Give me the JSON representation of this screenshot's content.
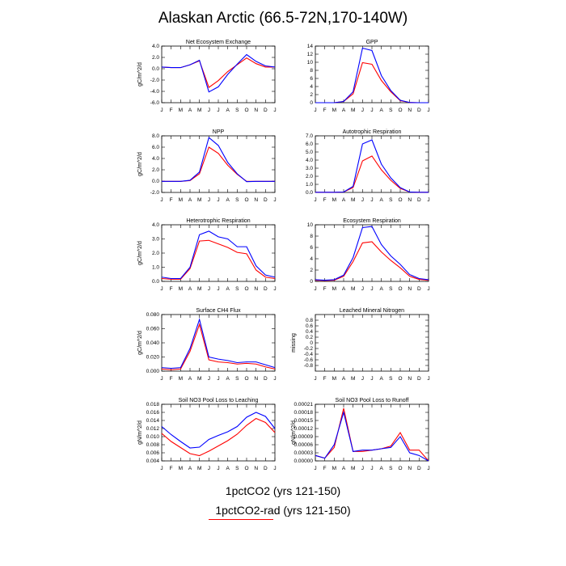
{
  "title": "Alaskan Arctic (66.5-72N,170-140W)",
  "colors": {
    "series1": "#0000ff",
    "series2": "#ff0000"
  },
  "legend": {
    "series1_label": "1pctCO2 (yrs 121-150)",
    "series2_label": "1pctCO2-rad (yrs 121-150)"
  },
  "chart_data": [
    {
      "type": "line",
      "title": "Net Ecosystem Exchange",
      "ylabel": "gC/m^2/d",
      "x": [
        "J",
        "F",
        "M",
        "A",
        "M",
        "J",
        "J",
        "A",
        "S",
        "O",
        "N",
        "D",
        "J"
      ],
      "ylim": [
        -6.0,
        4.0
      ],
      "yticks": [
        -6.0,
        -4.0,
        -2.0,
        0.0,
        2.0,
        4.0
      ],
      "ytick_labels": [
        "-6.0",
        "-4.0",
        "-2.0",
        "0.0",
        "2.0",
        "4.0"
      ],
      "series": [
        {
          "values": [
            0.3,
            0.2,
            0.2,
            0.7,
            1.5,
            -4.1,
            -3.2,
            -1.0,
            0.8,
            2.5,
            1.3,
            0.5,
            0.3
          ]
        },
        {
          "values": [
            0.3,
            0.2,
            0.2,
            0.7,
            1.4,
            -3.3,
            -2.1,
            -0.5,
            0.7,
            1.9,
            0.9,
            0.3,
            0.3
          ]
        }
      ]
    },
    {
      "type": "line",
      "title": "GPP",
      "ylabel": "",
      "x": [
        "J",
        "F",
        "M",
        "A",
        "M",
        "J",
        "J",
        "A",
        "S",
        "O",
        "N",
        "D",
        "J"
      ],
      "ylim": [
        0,
        14
      ],
      "yticks": [
        0,
        2,
        4,
        6,
        8,
        10,
        12,
        14
      ],
      "ytick_labels": [
        "0",
        "2",
        "4",
        "6",
        "8",
        "10",
        "12",
        "14"
      ],
      "series": [
        {
          "values": [
            0.0,
            0.0,
            0.0,
            0.3,
            2.7,
            13.5,
            12.9,
            6.7,
            3.0,
            0.6,
            0.05,
            0.0,
            0.0
          ]
        },
        {
          "values": [
            0.0,
            0.0,
            0.0,
            0.3,
            2.2,
            9.9,
            9.5,
            5.5,
            2.7,
            0.5,
            0.05,
            0.0,
            0.0
          ]
        }
      ]
    },
    {
      "type": "line",
      "title": "NPP",
      "ylabel": "gC/m^2/d",
      "x": [
        "J",
        "F",
        "M",
        "A",
        "M",
        "J",
        "J",
        "A",
        "S",
        "O",
        "N",
        "D",
        "J"
      ],
      "ylim": [
        -2.0,
        8.0
      ],
      "yticks": [
        -2.0,
        0.0,
        2.0,
        4.0,
        6.0,
        8.0
      ],
      "ytick_labels": [
        "-2.0",
        "0.0",
        "2.0",
        "4.0",
        "6.0",
        "8.0"
      ],
      "series": [
        {
          "values": [
            -0.05,
            -0.05,
            -0.05,
            0.15,
            1.6,
            7.7,
            6.3,
            3.3,
            1.3,
            -0.1,
            -0.05,
            -0.05,
            -0.05
          ]
        },
        {
          "values": [
            -0.05,
            -0.05,
            -0.05,
            0.1,
            1.3,
            6.0,
            4.9,
            2.8,
            1.2,
            -0.05,
            -0.05,
            -0.05,
            -0.05
          ]
        }
      ]
    },
    {
      "type": "line",
      "title": "Autotrophic Respiration",
      "ylabel": "",
      "x": [
        "J",
        "F",
        "M",
        "A",
        "M",
        "J",
        "J",
        "A",
        "S",
        "O",
        "N",
        "D",
        "J"
      ],
      "ylim": [
        0.0,
        7.0
      ],
      "yticks": [
        0.0,
        1.0,
        2.0,
        3.0,
        4.0,
        5.0,
        6.0,
        7.0
      ],
      "ytick_labels": [
        "0.0",
        "1.0",
        "2.0",
        "3.0",
        "4.0",
        "5.0",
        "6.0",
        "7.0"
      ],
      "series": [
        {
          "values": [
            0.02,
            0.02,
            0.02,
            0.05,
            0.75,
            6.0,
            6.5,
            3.5,
            1.8,
            0.6,
            0.05,
            0.02,
            0.02
          ]
        },
        {
          "values": [
            0.02,
            0.02,
            0.02,
            0.05,
            0.6,
            3.9,
            4.5,
            2.8,
            1.5,
            0.5,
            0.05,
            0.02,
            0.02
          ]
        }
      ]
    },
    {
      "type": "line",
      "title": "Heterotrophic Respiration",
      "ylabel": "gC/m^2/d",
      "x": [
        "J",
        "F",
        "M",
        "A",
        "M",
        "J",
        "J",
        "A",
        "S",
        "O",
        "N",
        "D",
        "J"
      ],
      "ylim": [
        0.0,
        4.0
      ],
      "yticks": [
        0.0,
        1.0,
        2.0,
        3.0,
        4.0
      ],
      "ytick_labels": [
        "0.0",
        "1.0",
        "2.0",
        "3.0",
        "4.0"
      ],
      "series": [
        {
          "values": [
            0.3,
            0.2,
            0.2,
            1.0,
            3.3,
            3.55,
            3.15,
            3.0,
            2.45,
            2.45,
            1.1,
            0.45,
            0.3
          ]
        },
        {
          "values": [
            0.2,
            0.15,
            0.15,
            0.9,
            2.85,
            2.9,
            2.65,
            2.4,
            2.05,
            1.95,
            0.8,
            0.3,
            0.2
          ]
        }
      ]
    },
    {
      "type": "line",
      "title": "Ecosystem Respiration",
      "ylabel": "",
      "x": [
        "J",
        "F",
        "M",
        "A",
        "M",
        "J",
        "J",
        "A",
        "S",
        "O",
        "N",
        "D",
        "J"
      ],
      "ylim": [
        0,
        10
      ],
      "yticks": [
        0,
        2,
        4,
        6,
        8,
        10
      ],
      "ytick_labels": [
        "0",
        "2",
        "4",
        "6",
        "8",
        "10"
      ],
      "series": [
        {
          "values": [
            0.3,
            0.2,
            0.3,
            1.1,
            4.2,
            9.5,
            9.7,
            6.5,
            4.5,
            3.0,
            1.2,
            0.5,
            0.3
          ]
        },
        {
          "values": [
            0.2,
            0.15,
            0.2,
            0.9,
            3.5,
            6.8,
            7.0,
            5.2,
            3.7,
            2.4,
            0.9,
            0.35,
            0.2
          ]
        }
      ]
    },
    {
      "type": "line",
      "title": "Surface CH4 Flux",
      "ylabel": "gC/m^2/d",
      "x": [
        "J",
        "F",
        "M",
        "A",
        "M",
        "J",
        "J",
        "A",
        "S",
        "O",
        "N",
        "D",
        "J"
      ],
      "ylim": [
        0.0,
        0.08
      ],
      "yticks": [
        0.0,
        0.02,
        0.04,
        0.06,
        0.08
      ],
      "ytick_labels": [
        "0.000",
        "0.020",
        "0.040",
        "0.060",
        "0.080"
      ],
      "series": [
        {
          "values": [
            0.005,
            0.004,
            0.005,
            0.032,
            0.073,
            0.02,
            0.017,
            0.015,
            0.012,
            0.013,
            0.013,
            0.009,
            0.005
          ]
        },
        {
          "values": [
            0.003,
            0.002,
            0.003,
            0.028,
            0.066,
            0.016,
            0.013,
            0.012,
            0.01,
            0.011,
            0.01,
            0.006,
            0.003
          ]
        }
      ]
    },
    {
      "type": "line",
      "title": "Leached Mineral Nitrogen",
      "ylabel": "missing",
      "x": [
        "J",
        "F",
        "M",
        "A",
        "M",
        "J",
        "J",
        "A",
        "S",
        "O",
        "N",
        "D",
        "J"
      ],
      "ylim": [
        -1.0,
        1.0
      ],
      "yticks": [
        -0.8,
        -0.6,
        -0.4,
        -0.2,
        0.0,
        0.2,
        0.4,
        0.6,
        0.8
      ],
      "ytick_labels": [
        "-0.8",
        "-0.6",
        "-0.4",
        "-0.2",
        "0",
        "0.2",
        "0.4",
        "0.6",
        "0.8"
      ],
      "series": []
    },
    {
      "type": "line",
      "title": "Soil NO3 Pool Loss to Leaching",
      "ylabel": "gN/m^2/d",
      "x": [
        "J",
        "F",
        "M",
        "A",
        "M",
        "J",
        "J",
        "A",
        "S",
        "O",
        "N",
        "D",
        "J"
      ],
      "ylim": [
        0.004,
        0.018
      ],
      "yticks": [
        0.004,
        0.006,
        0.008,
        0.01,
        0.012,
        0.014,
        0.016,
        0.018
      ],
      "ytick_labels": [
        "0.004",
        "0.006",
        "0.008",
        "0.010",
        "0.012",
        "0.014",
        "0.016",
        "0.018"
      ],
      "series": [
        {
          "values": [
            0.0125,
            0.0105,
            0.0088,
            0.0072,
            0.0074,
            0.0093,
            0.0103,
            0.0112,
            0.0125,
            0.0148,
            0.016,
            0.015,
            0.012
          ]
        },
        {
          "values": [
            0.0108,
            0.0088,
            0.0073,
            0.0058,
            0.0053,
            0.0064,
            0.0077,
            0.009,
            0.0106,
            0.0128,
            0.0145,
            0.0135,
            0.011
          ]
        }
      ]
    },
    {
      "type": "line",
      "title": "Soil NO3 Pool Loss to Runoff",
      "ylabel": "gN/m^2/d",
      "x": [
        "J",
        "F",
        "M",
        "A",
        "M",
        "J",
        "J",
        "A",
        "S",
        "O",
        "N",
        "D",
        "J"
      ],
      "ylim": [
        0.0,
        0.00021
      ],
      "yticks": [
        0.0,
        3e-05,
        6e-05,
        9e-05,
        0.00012,
        0.00015,
        0.00018,
        0.00021
      ],
      "ytick_labels": [
        "0.00000",
        "0.00003",
        "0.00006",
        "0.00009",
        "0.00012",
        "0.00015",
        "0.00018",
        "0.00021"
      ],
      "series": [
        {
          "values": [
            2e-05,
            1e-05,
            6e-05,
            0.00018,
            3.5e-05,
            4e-05,
            4e-05,
            4.5e-05,
            5e-05,
            9e-05,
            3e-05,
            2e-05,
            0.0
          ]
        },
        {
          "values": [
            2e-05,
            1e-05,
            5e-05,
            0.000195,
            3.5e-05,
            3.5e-05,
            4e-05,
            4.5e-05,
            5.5e-05,
            0.000105,
            4e-05,
            4e-05,
            0.0
          ]
        }
      ]
    }
  ]
}
